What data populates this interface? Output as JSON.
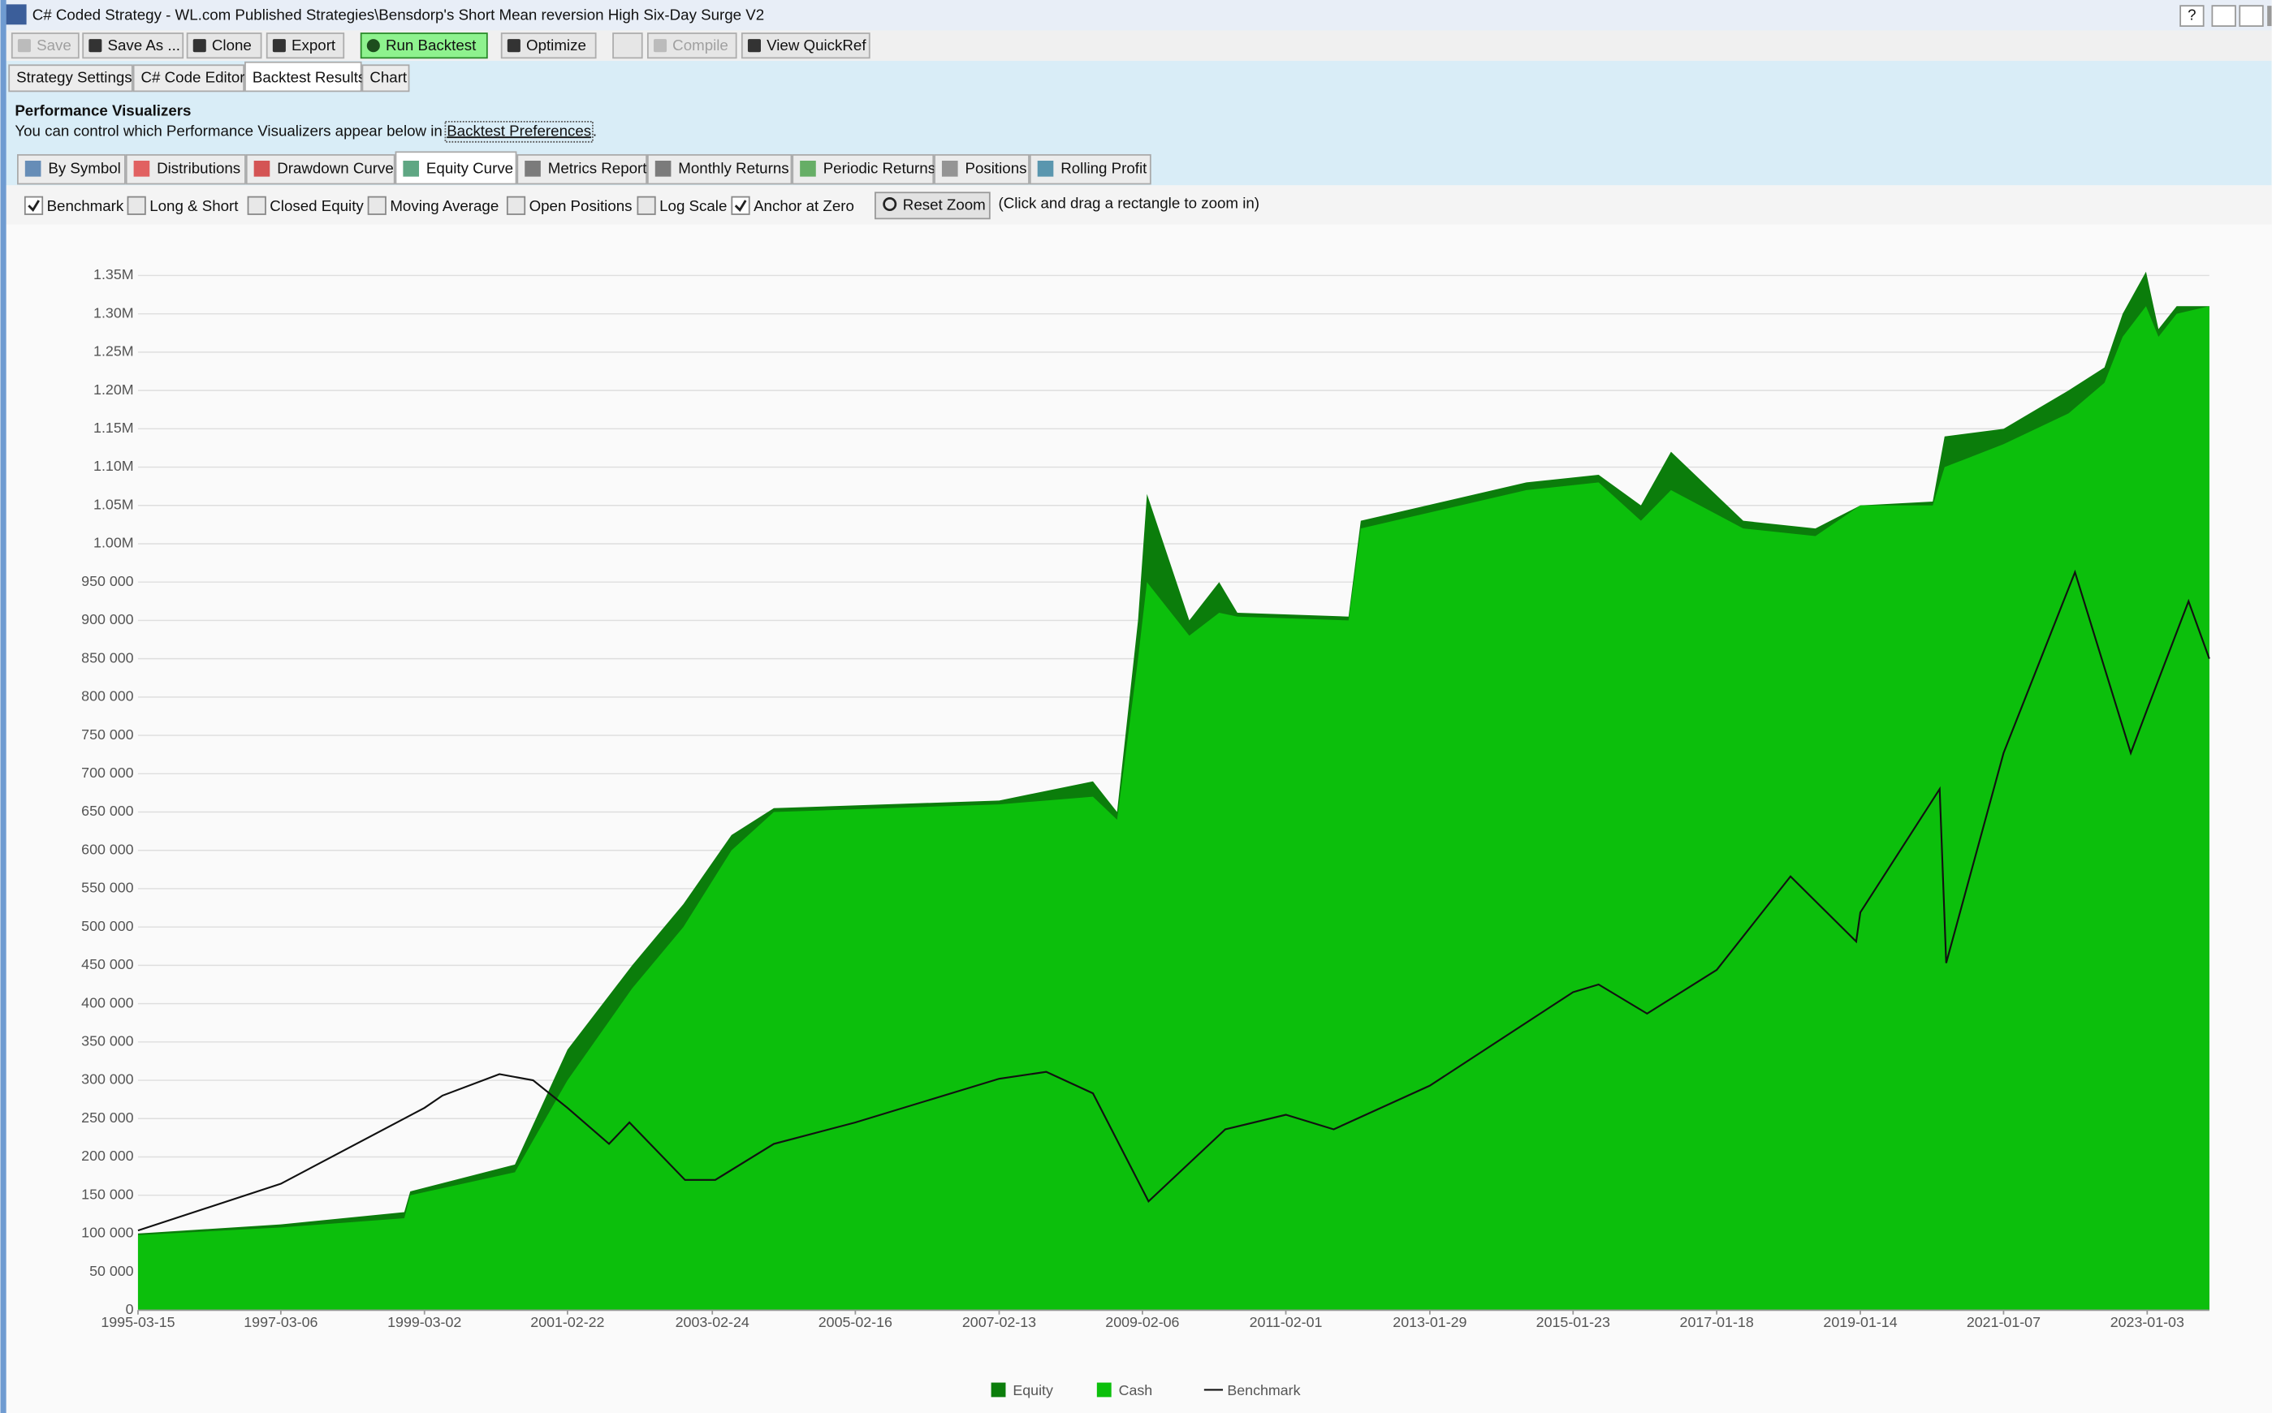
{
  "window": {
    "title": "C# Coded Strategy - WL.com Published Strategies\\Bensdorp's Short Mean reversion High Six-Day Surge V2",
    "help": "?"
  },
  "toolbar": [
    {
      "label": "Save",
      "disabled": true
    },
    {
      "label": "Save As ..."
    },
    {
      "label": "Clone"
    },
    {
      "label": "Export"
    },
    {
      "label": "Run Backtest",
      "highlight": true
    },
    {
      "label": "Optimize"
    },
    {
      "label": "Compile",
      "disabled": true
    },
    {
      "label": "View QuickRef"
    }
  ],
  "tabs": [
    {
      "label": "Strategy Settings"
    },
    {
      "label": "C# Code Editor"
    },
    {
      "label": "Backtest Results",
      "active": true
    },
    {
      "label": "Chart"
    }
  ],
  "panel": {
    "title": "Performance Visualizers",
    "text": "You can control which Performance Visualizers appear below in",
    "link": "Backtest Preferences",
    "end": "."
  },
  "visualizer_tabs": [
    {
      "label": "By Symbol"
    },
    {
      "label": "Distributions"
    },
    {
      "label": "Drawdown Curve"
    },
    {
      "label": "Equity Curve",
      "active": true
    },
    {
      "label": "Metrics Report"
    },
    {
      "label": "Monthly Returns"
    },
    {
      "label": "Periodic Returns"
    },
    {
      "label": "Positions"
    },
    {
      "label": "Rolling Profit"
    }
  ],
  "options": [
    {
      "label": "Benchmark",
      "checked": true
    },
    {
      "label": "Long & Short",
      "checked": false
    },
    {
      "label": "Closed Equity",
      "checked": false
    },
    {
      "label": "Moving Average",
      "checked": false
    },
    {
      "label": "Open Positions",
      "checked": false
    },
    {
      "label": "Log Scale",
      "checked": false
    },
    {
      "label": "Anchor at Zero",
      "checked": true
    }
  ],
  "reset_zoom": "Reset Zoom",
  "hint": "(Click and drag a rectangle to zoom in)",
  "chart_data": {
    "type": "area",
    "xlim": [
      "1995-03-15",
      "2023-11-13"
    ],
    "xticks": [
      "1995-03-15",
      "1997-03-06",
      "1999-03-02",
      "2001-02-22",
      "2003-02-24",
      "2005-02-16",
      "2007-02-13",
      "2009-02-06",
      "2011-02-01",
      "2013-01-29",
      "2015-01-23",
      "2017-01-18",
      "2019-01-14",
      "2021-01-07",
      "2023-01-03"
    ],
    "ylim": [
      0,
      1360000
    ],
    "yticks": [
      0,
      {
        "value": 50000,
        "label": "50 000"
      },
      {
        "value": 100000,
        "label": "100 000"
      },
      {
        "value": 150000,
        "label": "150 000"
      },
      {
        "value": 200000,
        "label": "200 000"
      },
      {
        "value": 250000,
        "label": "250 000"
      },
      {
        "value": 300000,
        "label": "300 000"
      },
      {
        "value": 350000,
        "label": "350 000"
      },
      {
        "value": 400000,
        "label": "400 000"
      },
      {
        "value": 450000,
        "label": "450 000"
      },
      {
        "value": 500000,
        "label": "500 000"
      },
      {
        "value": 550000,
        "label": "550 000"
      },
      {
        "value": 600000,
        "label": "600 000"
      },
      {
        "value": 650000,
        "label": "650 000"
      },
      {
        "value": 700000,
        "label": "700 000"
      },
      {
        "value": 750000,
        "label": "750 000"
      },
      {
        "value": 800000,
        "label": "800 000"
      },
      {
        "value": 850000,
        "label": "850 000"
      },
      {
        "value": 900000,
        "label": "900 000"
      },
      {
        "value": 950000,
        "label": "950 000"
      },
      {
        "value": 1000000,
        "label": "1.00M"
      },
      {
        "value": 1050000,
        "label": "1.05M"
      },
      {
        "value": 1100000,
        "label": "1.10M"
      },
      {
        "value": 1150000,
        "label": "1.15M"
      },
      {
        "value": 1200000,
        "label": "1.20M"
      },
      {
        "value": 1250000,
        "label": "1.25M"
      },
      {
        "value": 1300000,
        "label": "1.30M"
      },
      {
        "value": 1350000,
        "label": "1.35M"
      }
    ],
    "grid": true,
    "series": [
      {
        "name": "Equity",
        "color": "#0b7d0b",
        "kind": "area",
        "x": [
          "1995-03-15",
          "1997-03-06",
          "1998-11-20",
          "1998-12-20",
          "2000-06-01",
          "2001-02-22",
          "2002-01-15",
          "2002-10-01",
          "2003-06-01",
          "2004-01-01",
          "2007-02-13",
          "2008-06-01",
          "2008-10-01",
          "2009-01-15",
          "2009-03-01",
          "2009-10-01",
          "2010-03-01",
          "2010-06-01",
          "2011-12-15",
          "2012-02-15",
          "2014-06-01",
          "2015-06-01",
          "2016-01-01",
          "2016-06-01",
          "2017-06-01",
          "2018-06-01",
          "2019-01-14",
          "2020-01-15",
          "2020-03-15",
          "2021-01-07",
          "2021-12-01",
          "2022-06-01",
          "2022-09-01",
          "2022-12-28",
          "2023-03-01",
          "2023-06-01",
          "2023-11-13"
        ],
        "values": [
          100000,
          112000,
          128000,
          155000,
          190000,
          340000,
          450000,
          530000,
          620000,
          655000,
          665000,
          690000,
          650000,
          900000,
          1065000,
          900000,
          950000,
          910000,
          905000,
          1030000,
          1080000,
          1090000,
          1050000,
          1120000,
          1030000,
          1020000,
          1050000,
          1055000,
          1140000,
          1150000,
          1200000,
          1230000,
          1300000,
          1355000,
          1280000,
          1310000,
          1310000
        ]
      },
      {
        "name": "Cash",
        "color": "#0cbf0c",
        "kind": "area",
        "x": [
          "1995-03-15",
          "1997-03-06",
          "1998-11-20",
          "1998-12-20",
          "2000-06-01",
          "2001-02-22",
          "2002-01-15",
          "2002-10-01",
          "2003-06-01",
          "2004-01-01",
          "2007-02-13",
          "2008-06-01",
          "2008-10-01",
          "2009-01-15",
          "2009-03-01",
          "2009-10-01",
          "2010-03-01",
          "2010-06-01",
          "2011-12-15",
          "2012-02-15",
          "2014-06-01",
          "2015-06-01",
          "2016-01-01",
          "2016-06-01",
          "2017-06-01",
          "2018-06-01",
          "2019-01-14",
          "2020-01-15",
          "2020-03-15",
          "2021-01-07",
          "2021-12-01",
          "2022-06-01",
          "2022-09-01",
          "2022-12-28",
          "2023-03-01",
          "2023-06-01",
          "2023-11-13"
        ],
        "values": [
          98000,
          108000,
          120000,
          150000,
          180000,
          300000,
          420000,
          500000,
          600000,
          650000,
          660000,
          670000,
          640000,
          850000,
          950000,
          880000,
          910000,
          905000,
          900000,
          1020000,
          1070000,
          1080000,
          1030000,
          1070000,
          1020000,
          1010000,
          1050000,
          1050000,
          1100000,
          1130000,
          1170000,
          1210000,
          1270000,
          1310000,
          1270000,
          1300000,
          1310000
        ]
      },
      {
        "name": "Benchmark",
        "color": "#111111",
        "kind": "line",
        "x": [
          "1995-03-15",
          "1997-03-06",
          "1999-03-02",
          "1999-06-01",
          "2000-03-15",
          "2000-09-01",
          "2001-02-22",
          "2001-09-20",
          "2002-01-01",
          "2002-10-09",
          "2003-03-11",
          "2004-01-01",
          "2005-02-16",
          "2007-02-13",
          "2007-10-09",
          "2008-06-01",
          "2009-03-09",
          "2010-04-01",
          "2011-02-01",
          "2011-10-01",
          "2013-01-29",
          "2015-01-23",
          "2015-06-01",
          "2016-02-01",
          "2017-01-18",
          "2018-01-26",
          "2018-12-24",
          "2019-01-14",
          "2020-02-19",
          "2020-03-23",
          "2021-01-07",
          "2022-01-03",
          "2022-10-12",
          "2023-01-03",
          "2023-07-31",
          "2023-11-13"
        ],
        "values": [
          104000,
          165000,
          264000,
          280000,
          308000,
          300000,
          264000,
          217000,
          245000,
          170000,
          170000,
          217000,
          245000,
          302000,
          311000,
          283000,
          142000,
          236000,
          255000,
          236000,
          293000,
          415000,
          425000,
          387000,
          444000,
          566000,
          481000,
          519000,
          680000,
          453000,
          727000,
          963000,
          727000,
          784000,
          925000,
          850000
        ]
      }
    ]
  }
}
